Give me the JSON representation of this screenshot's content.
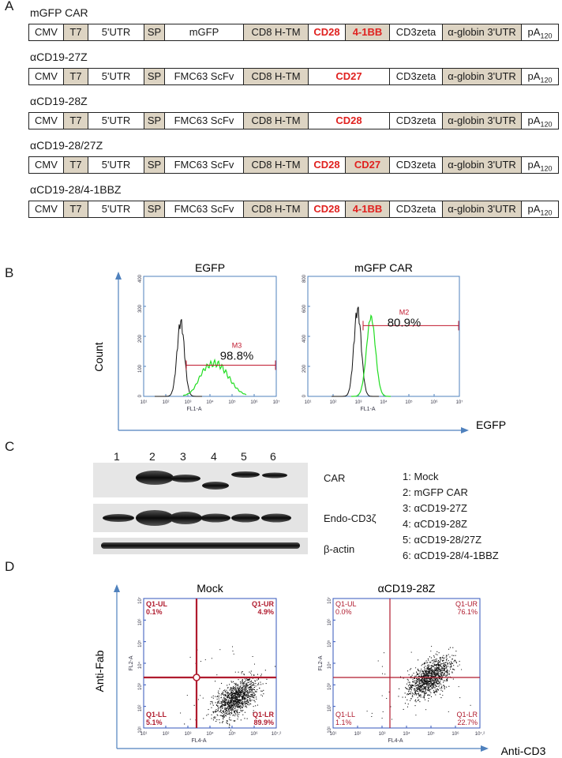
{
  "panel_a": {
    "letter": "A",
    "constructs": [
      {
        "name": "mGFP CAR",
        "segments": [
          {
            "text": "CMV",
            "tan": false,
            "red": false
          },
          {
            "text": "T7",
            "tan": true,
            "red": false
          },
          {
            "text": "5'UTR",
            "tan": false,
            "red": false
          },
          {
            "text": "SP",
            "tan": true,
            "red": false
          },
          {
            "text": "mGFP",
            "tan": false,
            "red": false
          },
          {
            "text": "CD8 H-TM",
            "tan": true,
            "red": false
          },
          {
            "text": "CD28",
            "tan": false,
            "red": true
          },
          {
            "text": "4-1BB",
            "tan": true,
            "red": true
          },
          {
            "text": "CD3zeta",
            "tan": false,
            "red": false
          },
          {
            "text": "α-globin 3'UTR",
            "tan": true,
            "red": false
          },
          {
            "text": "pA",
            "sub": "120",
            "tan": false,
            "red": false
          }
        ]
      },
      {
        "name": "αCD19-27Z",
        "segments": [
          {
            "text": "CMV",
            "tan": false,
            "red": false
          },
          {
            "text": "T7",
            "tan": true,
            "red": false
          },
          {
            "text": "5'UTR",
            "tan": false,
            "red": false
          },
          {
            "text": "SP",
            "tan": true,
            "red": false
          },
          {
            "text": "FMC63 ScFv",
            "tan": false,
            "red": false
          },
          {
            "text": "CD8 H-TM",
            "tan": true,
            "red": false
          },
          {
            "text": "CD27",
            "tan": false,
            "red": true,
            "wide": true
          },
          {
            "text": "CD3zeta",
            "tan": false,
            "red": false
          },
          {
            "text": "α-globin 3'UTR",
            "tan": true,
            "red": false
          },
          {
            "text": "pA",
            "sub": "120",
            "tan": false,
            "red": false
          }
        ]
      },
      {
        "name": "αCD19-28Z",
        "segments": [
          {
            "text": "CMV",
            "tan": false,
            "red": false
          },
          {
            "text": "T7",
            "tan": true,
            "red": false
          },
          {
            "text": "5'UTR",
            "tan": false,
            "red": false
          },
          {
            "text": "SP",
            "tan": true,
            "red": false
          },
          {
            "text": "FMC63 ScFv",
            "tan": false,
            "red": false
          },
          {
            "text": "CD8 H-TM",
            "tan": true,
            "red": false
          },
          {
            "text": "CD28",
            "tan": false,
            "red": true,
            "wide": true
          },
          {
            "text": "CD3zeta",
            "tan": false,
            "red": false
          },
          {
            "text": "α-globin 3'UTR",
            "tan": true,
            "red": false
          },
          {
            "text": "pA",
            "sub": "120",
            "tan": false,
            "red": false
          }
        ]
      },
      {
        "name": "αCD19-28/27Z",
        "segments": [
          {
            "text": "CMV",
            "tan": false,
            "red": false
          },
          {
            "text": "T7",
            "tan": true,
            "red": false
          },
          {
            "text": "5'UTR",
            "tan": false,
            "red": false
          },
          {
            "text": "SP",
            "tan": true,
            "red": false
          },
          {
            "text": "FMC63 ScFv",
            "tan": false,
            "red": false
          },
          {
            "text": "CD8 H-TM",
            "tan": true,
            "red": false
          },
          {
            "text": "CD28",
            "tan": false,
            "red": true
          },
          {
            "text": "CD27",
            "tan": true,
            "red": true
          },
          {
            "text": "CD3zeta",
            "tan": false,
            "red": false
          },
          {
            "text": "α-globin 3'UTR",
            "tan": true,
            "red": false
          },
          {
            "text": "pA",
            "sub": "120",
            "tan": false,
            "red": false
          }
        ]
      },
      {
        "name": "αCD19-28/4-1BBZ",
        "segments": [
          {
            "text": "CMV",
            "tan": false,
            "red": false
          },
          {
            "text": "T7",
            "tan": true,
            "red": false
          },
          {
            "text": "5'UTR",
            "tan": false,
            "red": false
          },
          {
            "text": "SP",
            "tan": true,
            "red": false
          },
          {
            "text": "FMC63 ScFv",
            "tan": false,
            "red": false
          },
          {
            "text": "CD8 H-TM",
            "tan": true,
            "red": false
          },
          {
            "text": "CD28",
            "tan": false,
            "red": true
          },
          {
            "text": "4-1BB",
            "tan": true,
            "red": true
          },
          {
            "text": "CD3zeta",
            "tan": false,
            "red": false
          },
          {
            "text": "α-globin 3'UTR",
            "tan": true,
            "red": false
          },
          {
            "text": "pA",
            "sub": "120",
            "tan": false,
            "red": false
          }
        ]
      }
    ]
  },
  "panel_b": {
    "letter": "B",
    "y_axis_label": "Count",
    "x_axis_label": "EGFP",
    "histograms": [
      {
        "title": "EGFP",
        "marker": "M3",
        "percent": "98.8%",
        "x_label": "FL1-A",
        "y_ticks": [
          "0",
          "100",
          "200",
          "300",
          "400"
        ],
        "x_ticks": [
          "10¹",
          "10²",
          "10³",
          "10⁴",
          "10⁵",
          "10⁶",
          "10⁷"
        ]
      },
      {
        "title": "mGFP CAR",
        "marker": "M2",
        "percent": "80.9%",
        "x_label": "FL1-A",
        "y_ticks": [
          "0",
          "200",
          "400",
          "600",
          "800"
        ],
        "x_ticks": [
          "10¹",
          "10²",
          "10³",
          "10⁴",
          "10⁵",
          "10⁶",
          "10⁷"
        ]
      }
    ],
    "colors": {
      "mock": "#111111",
      "gfp": "#22dd22",
      "gate": "#c0182e"
    }
  },
  "panel_c": {
    "letter": "C",
    "lanes": [
      "1",
      "2",
      "3",
      "4",
      "5",
      "6"
    ],
    "blot_labels": [
      "CAR",
      "Endo-CD3ζ",
      "β-actin"
    ],
    "legend": [
      "1: Mock",
      "2: mGFP CAR",
      "3: αCD19-27Z",
      "4: αCD19-28Z",
      "5: αCD19-28/27Z",
      "6: αCD19-28/4-1BBZ"
    ]
  },
  "panel_d": {
    "letter": "D",
    "y_axis_label": "Anti-Fab",
    "x_axis_label": "Anti-CD3",
    "plots": [
      {
        "title": "Mock",
        "x_label": "FL4-A",
        "y_label": "FL2-A",
        "quadrants": {
          "ul": [
            "Q1-UL",
            "0.1%"
          ],
          "ur": [
            "Q1-UR",
            "4.9%"
          ],
          "ll": [
            "Q1-LL",
            "5.1%"
          ],
          "lr": [
            "Q1-LR",
            "89.9%"
          ]
        }
      },
      {
        "title": "αCD19-28Z",
        "x_label": "FL4-A",
        "y_label": "FL2-A",
        "quadrants": {
          "ul": [
            "Q1-UL",
            "0.0%"
          ],
          "ur": [
            "Q1-UR",
            "76.1%"
          ],
          "ll": [
            "Q1-LL",
            "1.1%"
          ],
          "lr": [
            "Q1-LR",
            "22.7%"
          ]
        }
      }
    ],
    "x_ticks": [
      "10¹",
      "10²",
      "10³",
      "10⁴",
      "10⁵",
      "10⁶",
      "10⁷.²"
    ],
    "y_ticks": [
      "10¹",
      "10²",
      "10³",
      "10⁴",
      "10⁵",
      "10⁶",
      "10⁷"
    ],
    "colors": {
      "frame": "#3355bb",
      "quad": "#b01b2e",
      "dots": "#111111"
    }
  }
}
